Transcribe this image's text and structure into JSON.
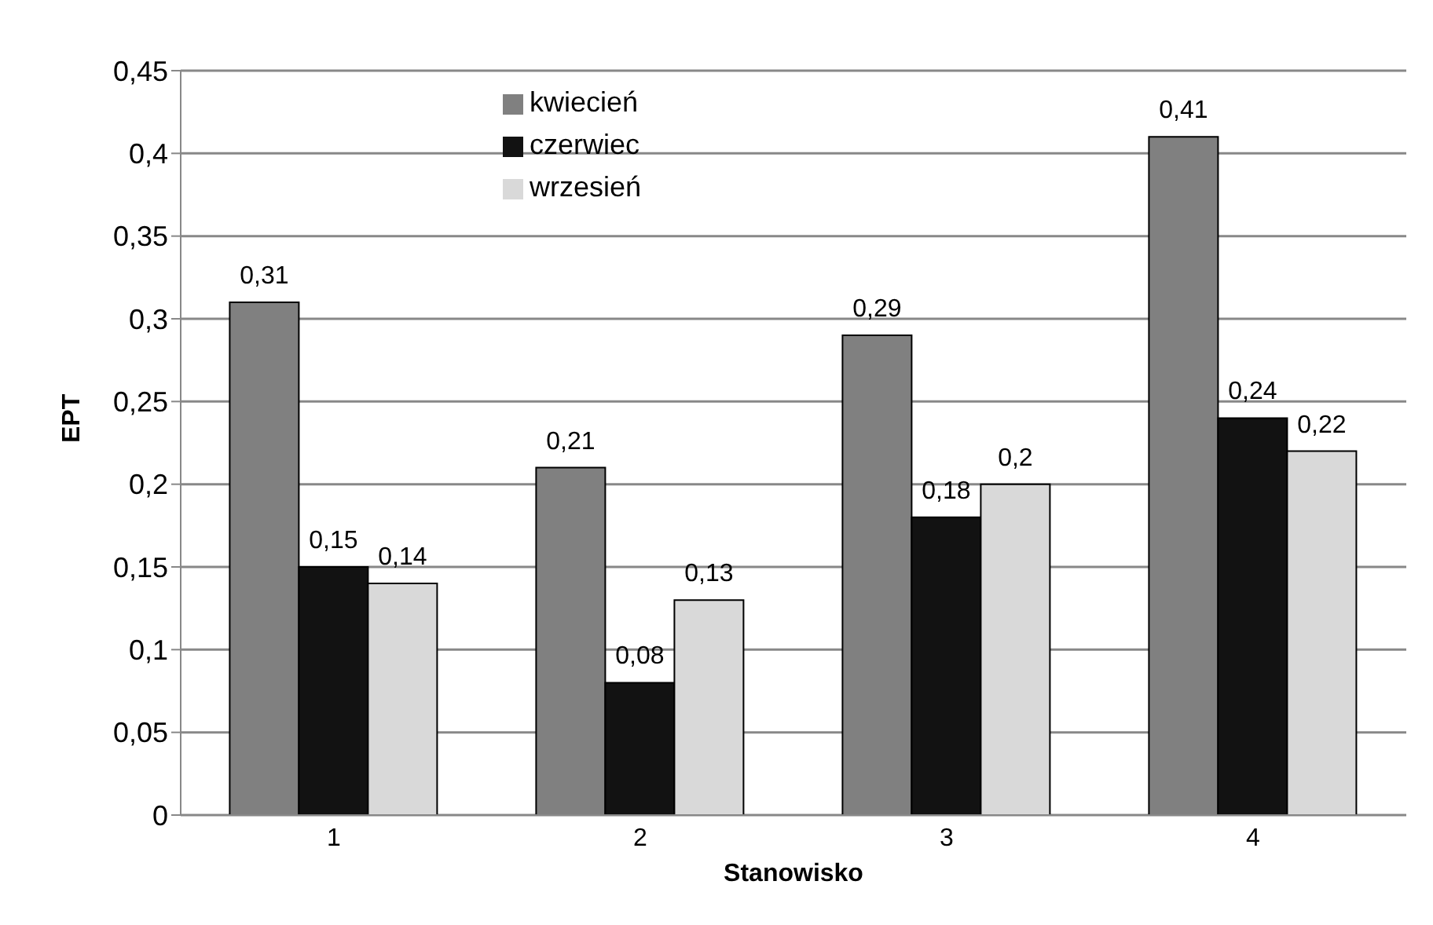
{
  "chart_data": {
    "type": "bar",
    "xlabel": "Stanowisko",
    "ylabel": "EPT",
    "categories": [
      "1",
      "2",
      "3",
      "4"
    ],
    "series": [
      {
        "name": "kwiecień",
        "color": "#808080",
        "values": [
          0.31,
          0.21,
          0.29,
          0.41
        ],
        "value_labels": [
          "0,31",
          "0,21",
          "0,29",
          "0,41"
        ]
      },
      {
        "name": "czerwiec",
        "color": "#121212",
        "values": [
          0.15,
          0.08,
          0.18,
          0.24
        ],
        "value_labels": [
          "0,15",
          "0,08",
          "0,18",
          "0,24"
        ]
      },
      {
        "name": "wrzesień",
        "color": "#d9d9d9",
        "values": [
          0.14,
          0.13,
          0.2,
          0.22
        ],
        "value_labels": [
          "0,14",
          "0,13",
          "0,2",
          "0,22"
        ]
      }
    ],
    "ylim": [
      0,
      0.45
    ],
    "yticks": [
      {
        "value": 0,
        "label": "0"
      },
      {
        "value": 0.05,
        "label": "0,05"
      },
      {
        "value": 0.1,
        "label": "0,1"
      },
      {
        "value": 0.15,
        "label": "0,15"
      },
      {
        "value": 0.2,
        "label": "0,2"
      },
      {
        "value": 0.25,
        "label": "0,25"
      },
      {
        "value": 0.3,
        "label": "0,3"
      },
      {
        "value": 0.35,
        "label": "0,35"
      },
      {
        "value": 0.4,
        "label": "0,4"
      },
      {
        "value": 0.45,
        "label": "0,45"
      }
    ],
    "grid": "y",
    "legend": "top"
  }
}
